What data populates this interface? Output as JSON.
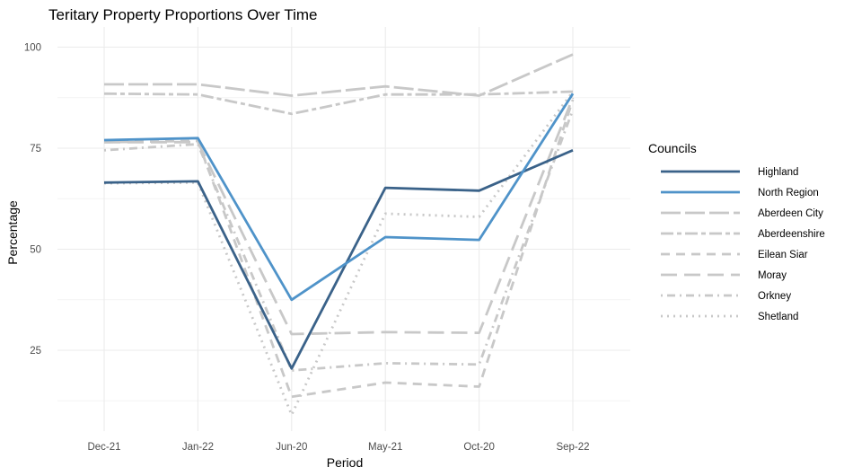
{
  "chart_data": {
    "type": "line",
    "title": "Teritary Property Proportions Over Time",
    "xlabel": "Period",
    "ylabel": "Percentage",
    "categories": [
      "Dec-21",
      "Jan-22",
      "Jun-20",
      "May-21",
      "Oct-20",
      "Sep-22"
    ],
    "yticks": [
      25,
      50,
      75,
      100
    ],
    "ylim": [
      5,
      105
    ],
    "grid": true,
    "legend": {
      "title": "Councils",
      "position": "right"
    },
    "series": [
      {
        "name": "Highland",
        "values": [
          66.5,
          66.8,
          20.5,
          65.2,
          64.5,
          74.5
        ],
        "color": "#3a6289",
        "dash": "solid",
        "width": 2.8
      },
      {
        "name": "North Region",
        "values": [
          77.0,
          77.5,
          37.5,
          53.0,
          52.3,
          88.5
        ],
        "color": "#4f93c9",
        "dash": "solid",
        "width": 2.8
      },
      {
        "name": "Aberdeen City",
        "values": [
          90.8,
          90.8,
          88.0,
          90.3,
          88.0,
          98.2
        ],
        "color": "#c8c8c8",
        "dash": "longdash",
        "width": 2.8
      },
      {
        "name": "Aberdeenshire",
        "values": [
          88.5,
          88.3,
          83.5,
          88.3,
          88.3,
          89.0
        ],
        "color": "#c8c8c8",
        "dash": "twodash",
        "width": 2.8
      },
      {
        "name": "Eilean Siar",
        "values": [
          76.5,
          76.8,
          13.5,
          17.0,
          16.0,
          87.0
        ],
        "color": "#c8c8c8",
        "dash": "dashed",
        "width": 2.8
      },
      {
        "name": "Moray",
        "values": [
          76.5,
          76.5,
          29.0,
          29.5,
          29.3,
          87.5
        ],
        "color": "#c8c8c8",
        "dash": "longdash2",
        "width": 2.8
      },
      {
        "name": "Orkney",
        "values": [
          74.5,
          76.0,
          20.0,
          21.8,
          21.5,
          84.5
        ],
        "color": "#c8c8c8",
        "dash": "dotdash",
        "width": 2.8
      },
      {
        "name": "Shetland",
        "values": [
          66.3,
          66.5,
          9.0,
          58.8,
          58.0,
          89.0
        ],
        "color": "#c8c8c8",
        "dash": "dotted",
        "width": 2.8
      }
    ]
  }
}
